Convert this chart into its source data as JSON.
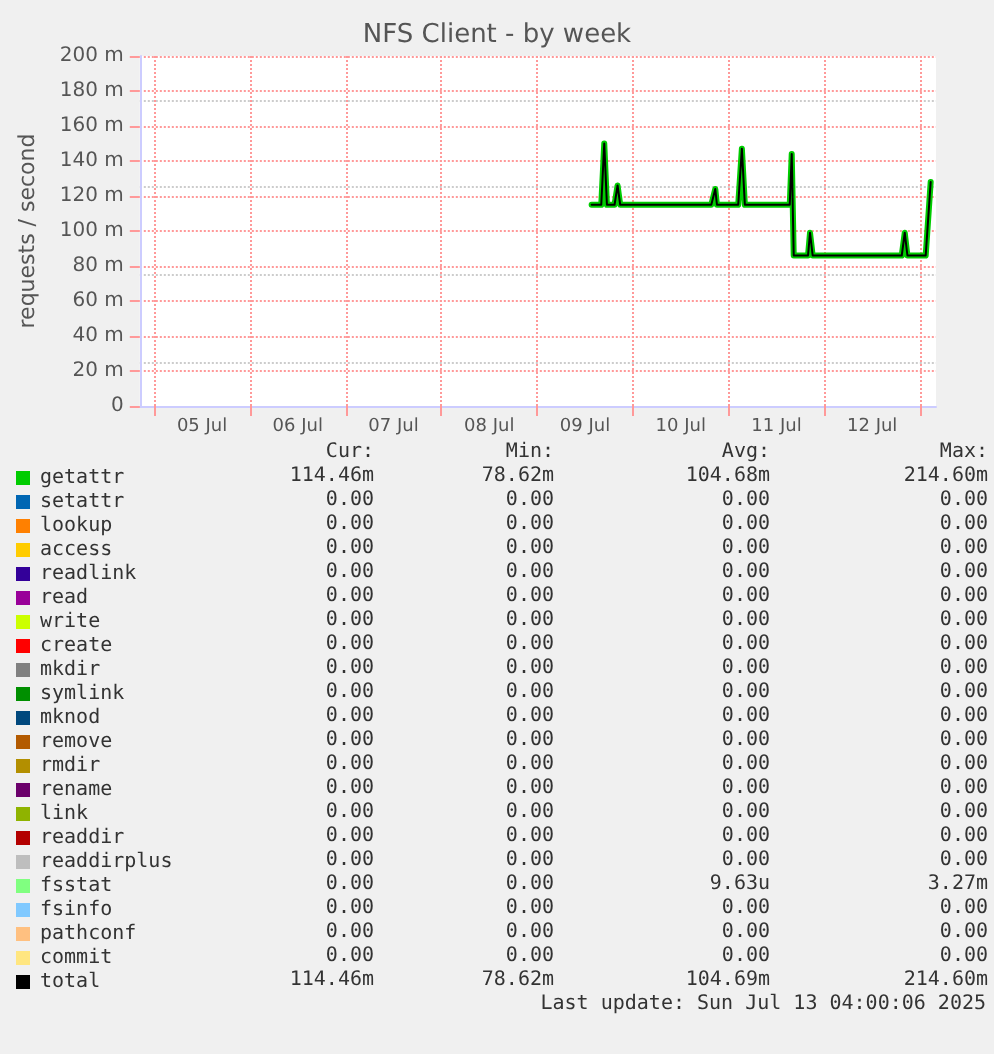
{
  "chart_data": {
    "type": "line",
    "title": "NFS Client - by week",
    "ylabel": "requests / second",
    "xlim": [
      "--07-04T20:24",
      "--07-13T04:00"
    ],
    "ylim": [
      0,
      200
    ],
    "xticks": [
      {
        "value": "--07-05",
        "label": null
      },
      {
        "value": "--07-05T12:00",
        "label": "05 Jul"
      },
      {
        "value": "--07-06",
        "label": null
      },
      {
        "value": "--07-06T12:00",
        "label": "06 Jul"
      },
      {
        "value": "--07-07",
        "label": null
      },
      {
        "value": "--07-07T12:00",
        "label": "07 Jul"
      },
      {
        "value": "--07-08",
        "label": null
      },
      {
        "value": "--07-08T12:00",
        "label": "08 Jul"
      },
      {
        "value": "--07-09",
        "label": null
      },
      {
        "value": "--07-09T12:00",
        "label": "09 Jul"
      },
      {
        "value": "--07-10",
        "label": null
      },
      {
        "value": "--07-10T12:00",
        "label": "10 Jul"
      },
      {
        "value": "--07-11",
        "label": null
      },
      {
        "value": "--07-11T12:00",
        "label": "11 Jul"
      },
      {
        "value": "--07-12",
        "label": null
      },
      {
        "value": "--07-12T12:00",
        "label": "12 Jul"
      },
      {
        "value": "--07-13",
        "label": null
      }
    ],
    "yticks": [
      {
        "value": 0,
        "label": "0"
      },
      {
        "value": 20,
        "label": "20 m"
      },
      {
        "value": 40,
        "label": "40 m"
      },
      {
        "value": 60,
        "label": "60 m"
      },
      {
        "value": 80,
        "label": "80 m"
      },
      {
        "value": 100,
        "label": "100 m"
      },
      {
        "value": 120,
        "label": "120 m"
      },
      {
        "value": 140,
        "label": "140 m"
      },
      {
        "value": 160,
        "label": "160 m"
      },
      {
        "value": 180,
        "label": "180 m"
      },
      {
        "value": 200,
        "label": "200 m"
      }
    ],
    "grid": true,
    "legend": "bottom",
    "marker": "none",
    "line_style": "solid",
    "x": [
      "--07-09T13:40",
      "--07-09T16:05",
      "--07-09T16:50",
      "--07-09T17:30",
      "--07-09T19:25",
      "--07-09T20:10",
      "--07-09T20:50",
      "--07-10T19:40",
      "--07-10T20:40",
      "--07-10T21:05",
      "--07-11T02:25",
      "--07-11T03:20",
      "--07-11T04:05",
      "--07-11T15:20",
      "--07-11T15:50",
      "--07-11T16:20",
      "--07-11T19:55",
      "--07-11T20:25",
      "--07-11T21:05",
      "--07-12T19:25",
      "--07-12T20:10",
      "--07-12T20:50",
      "--07-13T01:25",
      "--07-13T02:40"
    ],
    "series": [
      {
        "name": "getattr",
        "color": "#00cc00",
        "values": [
          115,
          115,
          150,
          115,
          115,
          126,
          115,
          115,
          124,
          115,
          115,
          147,
          115,
          115,
          144,
          86,
          86,
          99,
          86,
          86,
          99,
          86,
          86,
          128
        ]
      },
      {
        "name": "setattr",
        "color": "#0066b3",
        "values": [
          null,
          null,
          null,
          null,
          null,
          null,
          null,
          null,
          null,
          null,
          null,
          null,
          null,
          null,
          null,
          null,
          null,
          null,
          null,
          null,
          null,
          null,
          null,
          null
        ]
      },
      {
        "name": "lookup",
        "color": "#ff8000",
        "values": [
          null,
          null,
          null,
          null,
          null,
          null,
          null,
          null,
          null,
          null,
          null,
          null,
          null,
          null,
          null,
          null,
          null,
          null,
          null,
          null,
          null,
          null,
          null,
          null
        ]
      },
      {
        "name": "access",
        "color": "#ffcc00",
        "values": [
          null,
          null,
          null,
          null,
          null,
          null,
          null,
          null,
          null,
          null,
          null,
          null,
          null,
          null,
          null,
          null,
          null,
          null,
          null,
          null,
          null,
          null,
          null,
          null
        ]
      },
      {
        "name": "readlink",
        "color": "#330099",
        "values": [
          null,
          null,
          null,
          null,
          null,
          null,
          null,
          null,
          null,
          null,
          null,
          null,
          null,
          null,
          null,
          null,
          null,
          null,
          null,
          null,
          null,
          null,
          null,
          null
        ]
      },
      {
        "name": "read",
        "color": "#990099",
        "values": [
          null,
          null,
          null,
          null,
          null,
          null,
          null,
          null,
          null,
          null,
          null,
          null,
          null,
          null,
          null,
          null,
          null,
          null,
          null,
          null,
          null,
          null,
          null,
          null
        ]
      },
      {
        "name": "write",
        "color": "#ccff00",
        "values": [
          null,
          null,
          null,
          null,
          null,
          null,
          null,
          null,
          null,
          null,
          null,
          null,
          null,
          null,
          null,
          null,
          null,
          null,
          null,
          null,
          null,
          null,
          null,
          null
        ]
      },
      {
        "name": "create",
        "color": "#ff0000",
        "values": [
          null,
          null,
          null,
          null,
          null,
          null,
          null,
          null,
          null,
          null,
          null,
          null,
          null,
          null,
          null,
          null,
          null,
          null,
          null,
          null,
          null,
          null,
          null,
          null
        ]
      },
      {
        "name": "mkdir",
        "color": "#808080",
        "values": [
          null,
          null,
          null,
          null,
          null,
          null,
          null,
          null,
          null,
          null,
          null,
          null,
          null,
          null,
          null,
          null,
          null,
          null,
          null,
          null,
          null,
          null,
          null,
          null
        ]
      },
      {
        "name": "symlink",
        "color": "#008f00",
        "values": [
          null,
          null,
          null,
          null,
          null,
          null,
          null,
          null,
          null,
          null,
          null,
          null,
          null,
          null,
          null,
          null,
          null,
          null,
          null,
          null,
          null,
          null,
          null,
          null
        ]
      },
      {
        "name": "mknod",
        "color": "#00487d",
        "values": [
          null,
          null,
          null,
          null,
          null,
          null,
          null,
          null,
          null,
          null,
          null,
          null,
          null,
          null,
          null,
          null,
          null,
          null,
          null,
          null,
          null,
          null,
          null,
          null
        ]
      },
      {
        "name": "remove",
        "color": "#b35a00",
        "values": [
          null,
          null,
          null,
          null,
          null,
          null,
          null,
          null,
          null,
          null,
          null,
          null,
          null,
          null,
          null,
          null,
          null,
          null,
          null,
          null,
          null,
          null,
          null,
          null
        ]
      },
      {
        "name": "rmdir",
        "color": "#b38f00",
        "values": [
          null,
          null,
          null,
          null,
          null,
          null,
          null,
          null,
          null,
          null,
          null,
          null,
          null,
          null,
          null,
          null,
          null,
          null,
          null,
          null,
          null,
          null,
          null,
          null
        ]
      },
      {
        "name": "rename",
        "color": "#6b006b",
        "values": [
          null,
          null,
          null,
          null,
          null,
          null,
          null,
          null,
          null,
          null,
          null,
          null,
          null,
          null,
          null,
          null,
          null,
          null,
          null,
          null,
          null,
          null,
          null,
          null
        ]
      },
      {
        "name": "link",
        "color": "#8fb300",
        "values": [
          null,
          null,
          null,
          null,
          null,
          null,
          null,
          null,
          null,
          null,
          null,
          null,
          null,
          null,
          null,
          null,
          null,
          null,
          null,
          null,
          null,
          null,
          null,
          null
        ]
      },
      {
        "name": "readdir",
        "color": "#b30000",
        "values": [
          null,
          null,
          null,
          null,
          null,
          null,
          null,
          null,
          null,
          null,
          null,
          null,
          null,
          null,
          null,
          null,
          null,
          null,
          null,
          null,
          null,
          null,
          null,
          null
        ]
      },
      {
        "name": "readdirplus",
        "color": "#bebebe",
        "values": [
          null,
          null,
          null,
          null,
          null,
          null,
          null,
          null,
          null,
          null,
          null,
          null,
          null,
          null,
          null,
          null,
          null,
          null,
          null,
          null,
          null,
          null,
          null,
          null
        ]
      },
      {
        "name": "fsstat",
        "color": "#80ff80",
        "values": [
          null,
          null,
          null,
          null,
          null,
          null,
          null,
          null,
          null,
          null,
          null,
          null,
          null,
          null,
          null,
          null,
          null,
          null,
          null,
          null,
          null,
          null,
          null,
          null
        ]
      },
      {
        "name": "fsinfo",
        "color": "#80c9ff",
        "values": [
          null,
          null,
          null,
          null,
          null,
          null,
          null,
          null,
          null,
          null,
          null,
          null,
          null,
          null,
          null,
          null,
          null,
          null,
          null,
          null,
          null,
          null,
          null,
          null
        ]
      },
      {
        "name": "pathconf",
        "color": "#ffc080",
        "values": [
          null,
          null,
          null,
          null,
          null,
          null,
          null,
          null,
          null,
          null,
          null,
          null,
          null,
          null,
          null,
          null,
          null,
          null,
          null,
          null,
          null,
          null,
          null,
          null
        ]
      },
      {
        "name": "commit",
        "color": "#ffe680",
        "values": [
          null,
          null,
          null,
          null,
          null,
          null,
          null,
          null,
          null,
          null,
          null,
          null,
          null,
          null,
          null,
          null,
          null,
          null,
          null,
          null,
          null,
          null,
          null,
          null
        ]
      },
      {
        "name": "total",
        "color": "#000000",
        "values": [
          115,
          115,
          150,
          115,
          115,
          126,
          115,
          115,
          124,
          115,
          115,
          147,
          115,
          115,
          144,
          86,
          86,
          99,
          86,
          86,
          99,
          86,
          86,
          128
        ]
      }
    ],
    "annotations": [
      "Cur:",
      "Min:",
      "Avg:",
      "Max:",
      "114.46m",
      "78.62m",
      "104.68m",
      "214.60m",
      "0.00",
      "0.00",
      "0.00",
      "0.00",
      "0.00",
      "0.00",
      "0.00",
      "0.00",
      "0.00",
      "0.00",
      "0.00",
      "0.00",
      "0.00",
      "0.00",
      "0.00",
      "0.00",
      "0.00",
      "0.00",
      "0.00",
      "0.00",
      "0.00",
      "0.00",
      "0.00",
      "0.00",
      "0.00",
      "0.00",
      "0.00",
      "0.00",
      "0.00",
      "0.00",
      "0.00",
      "0.00",
      "0.00",
      "0.00",
      "0.00",
      "0.00",
      "0.00",
      "0.00",
      "0.00",
      "0.00",
      "0.00",
      "0.00",
      "0.00",
      "0.00",
      "0.00",
      "0.00",
      "0.00",
      "0.00",
      "0.00",
      "0.00",
      "0.00",
      "0.00",
      "0.00",
      "0.00",
      "0.00",
      "0.00",
      "0.00",
      "0.00",
      "0.00",
      "0.00",
      "0.00",
      "0.00",
      "0.00",
      "0.00",
      "0.00",
      "0.00",
      "9.63u",
      "3.27m",
      "0.00",
      "0.00",
      "0.00",
      "0.00",
      "0.00",
      "0.00",
      "0.00",
      "0.00",
      "0.00",
      "0.00",
      "0.00",
      "0.00",
      "114.46m",
      "78.62m",
      "104.69m",
      "214.60m",
      "Last update: Sun Jul 13 04:00:06 2025"
    ]
  }
}
